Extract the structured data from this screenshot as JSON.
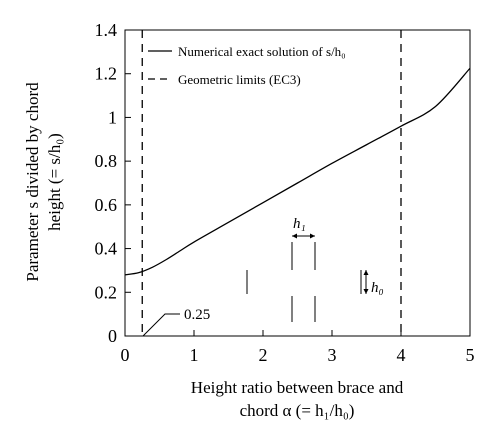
{
  "chart_data": {
    "type": "line",
    "xlabel_lines": [
      "Height ratio between brace and",
      "chord α (= h₁/h₀)"
    ],
    "ylabel_lines": [
      "Parameter s divided by chord",
      "height (= s/h₀)"
    ],
    "xlim": [
      0,
      5
    ],
    "ylim": [
      0,
      1.4
    ],
    "x_ticks": [
      0,
      1,
      2,
      3,
      4,
      5
    ],
    "y_ticks": [
      0,
      0.2,
      0.4,
      0.6,
      0.8,
      1,
      1.2,
      1.4
    ],
    "y_tick_labels": [
      "0",
      "0.2",
      "0.4",
      "0.6",
      "0.8",
      "1",
      "1.2",
      "1.4"
    ],
    "grid": false,
    "legend_position": "top-left",
    "series": [
      {
        "name": "Numerical exact solution of s/h₀",
        "style": "solid",
        "x": [
          0,
          0.2,
          0.4,
          0.6,
          0.8,
          1.0,
          1.5,
          2.0,
          2.5,
          3.0,
          3.5,
          4.0,
          4.5,
          5.0
        ],
        "y": [
          0.28,
          0.29,
          0.315,
          0.35,
          0.39,
          0.43,
          0.52,
          0.61,
          0.7,
          0.79,
          0.875,
          0.96,
          1.05,
          1.225
        ]
      }
    ],
    "reference_lines": [
      {
        "name": "Geometric limits (EC3)",
        "style": "dashed",
        "x": 0.25
      },
      {
        "name": "Geometric limits (EC3)",
        "style": "dashed",
        "x": 4.0
      }
    ],
    "annotations": {
      "limit_label": "0.25",
      "h1_label": "h₁",
      "h0_label": "h₀"
    }
  }
}
